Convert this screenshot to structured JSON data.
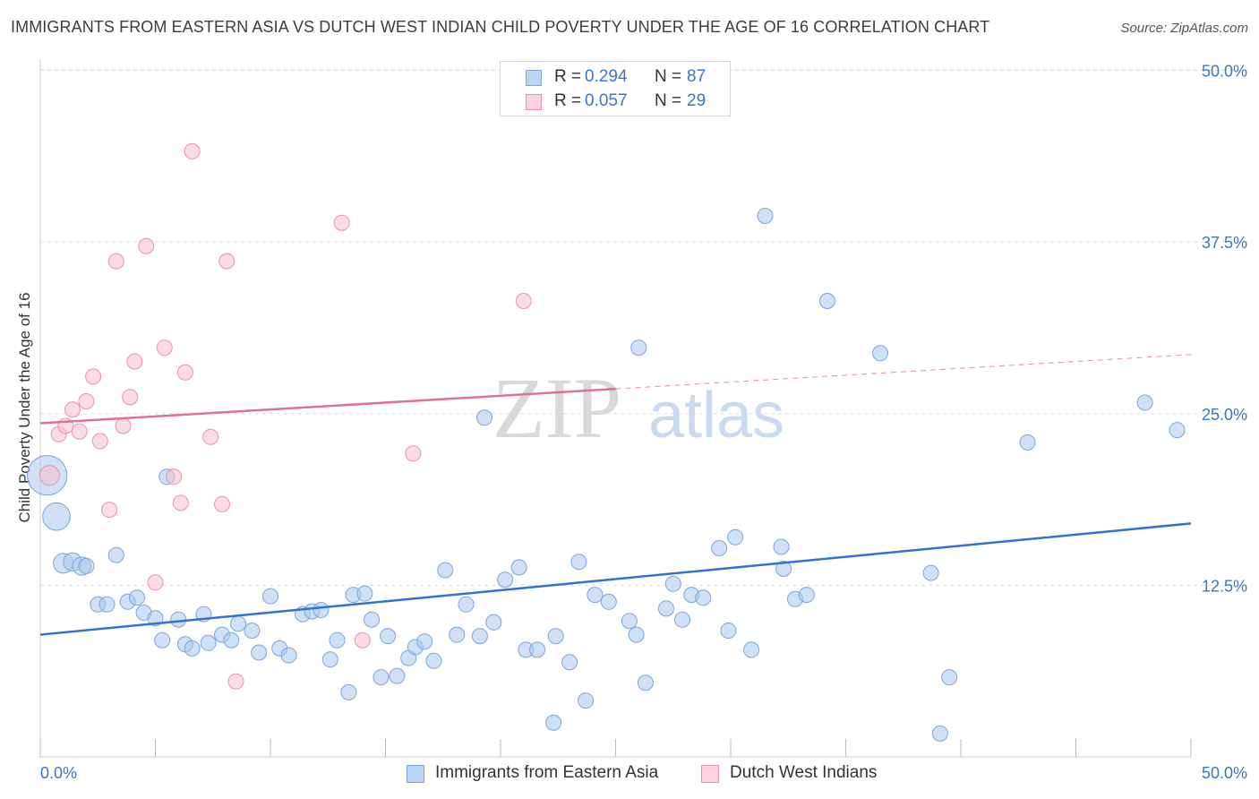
{
  "title": "IMMIGRANTS FROM EASTERN ASIA VS DUTCH WEST INDIAN CHILD POVERTY UNDER THE AGE OF 16 CORRELATION CHART",
  "source": "Source: ZipAtlas.com",
  "watermark": {
    "zip": "ZIP",
    "atlas": "atlas"
  },
  "legend": {
    "r_label": "R =",
    "n_label": "N =",
    "entries": [
      {
        "r": "0.294",
        "n": "87"
      },
      {
        "r": "0.057",
        "n": "29"
      }
    ]
  },
  "chart_data": {
    "type": "scatter",
    "title": "IMMIGRANTS FROM EASTERN ASIA VS DUTCH WEST INDIAN CHILD POVERTY UNDER THE AGE OF 16 CORRELATION CHART",
    "xlabel": "",
    "ylabel": "Child Poverty Under the Age of 16",
    "xlim": [
      0,
      50
    ],
    "ylim": [
      0,
      50
    ],
    "x_tick_labels": [
      "0.0%",
      "50.0%"
    ],
    "y_tick_labels": [
      "50.0%",
      "37.5%",
      "25.0%",
      "12.5%"
    ],
    "y_ticks": [
      50,
      37.5,
      25,
      12.5
    ],
    "grid": true,
    "legend_position": "top-center",
    "series": [
      {
        "name": "Immigrants from Eastern Asia",
        "color": "#a9c8ef",
        "stroke": "#7aa6dc",
        "line_color": "#2f73d0",
        "trend": {
          "x": [
            0,
            50
          ],
          "y": [
            8.9,
            17.0
          ],
          "dashed_from": null
        },
        "points": [
          [
            0.3,
            20.5,
            2.6
          ],
          [
            0.7,
            17.5,
            1.8
          ],
          [
            1.0,
            14.1,
            1.3
          ],
          [
            1.4,
            14.2,
            1.2
          ],
          [
            1.8,
            13.9,
            1.2
          ],
          [
            2.0,
            13.9,
            1.0
          ],
          [
            2.5,
            11.1,
            1.0
          ],
          [
            2.9,
            11.1,
            1.0
          ],
          [
            3.3,
            14.7,
            1.0
          ],
          [
            3.8,
            11.3,
            1.0
          ],
          [
            4.2,
            11.6,
            1.0
          ],
          [
            4.5,
            10.5,
            1.0
          ],
          [
            5.0,
            10.1,
            1.0
          ],
          [
            5.3,
            8.5,
            1.0
          ],
          [
            5.5,
            20.4,
            1.0
          ],
          [
            6.0,
            10.0,
            1.0
          ],
          [
            6.3,
            8.2,
            1.0
          ],
          [
            6.6,
            7.9,
            1.0
          ],
          [
            7.1,
            10.4,
            1.0
          ],
          [
            7.3,
            8.3,
            1.0
          ],
          [
            7.9,
            8.9,
            1.0
          ],
          [
            8.3,
            8.5,
            1.0
          ],
          [
            8.6,
            9.7,
            1.0
          ],
          [
            9.2,
            9.2,
            1.0
          ],
          [
            9.5,
            7.6,
            1.0
          ],
          [
            10.0,
            11.7,
            1.0
          ],
          [
            10.4,
            7.9,
            1.0
          ],
          [
            10.8,
            7.4,
            1.0
          ],
          [
            11.4,
            10.4,
            1.0
          ],
          [
            11.8,
            10.6,
            1.0
          ],
          [
            12.2,
            10.7,
            1.0
          ],
          [
            12.6,
            7.1,
            1.0
          ],
          [
            12.9,
            8.5,
            1.0
          ],
          [
            13.4,
            4.7,
            1.0
          ],
          [
            13.6,
            11.8,
            1.0
          ],
          [
            14.1,
            11.9,
            1.0
          ],
          [
            14.4,
            10.0,
            1.0
          ],
          [
            14.8,
            5.8,
            1.0
          ],
          [
            15.1,
            8.8,
            1.0
          ],
          [
            15.5,
            5.9,
            1.0
          ],
          [
            16.0,
            7.2,
            1.0
          ],
          [
            16.3,
            8.0,
            1.0
          ],
          [
            16.7,
            8.4,
            1.0
          ],
          [
            17.1,
            7.0,
            1.0
          ],
          [
            17.6,
            13.6,
            1.0
          ],
          [
            18.1,
            8.9,
            1.0
          ],
          [
            18.5,
            11.1,
            1.0
          ],
          [
            19.1,
            8.8,
            1.0
          ],
          [
            19.3,
            24.7,
            1.0
          ],
          [
            19.7,
            9.8,
            1.0
          ],
          [
            20.2,
            12.9,
            1.0
          ],
          [
            20.8,
            13.8,
            1.0
          ],
          [
            21.1,
            7.8,
            1.0
          ],
          [
            21.6,
            7.8,
            1.0
          ],
          [
            22.3,
            2.5,
            1.0
          ],
          [
            22.4,
            8.8,
            1.0
          ],
          [
            23.0,
            6.9,
            1.0
          ],
          [
            23.4,
            14.2,
            1.0
          ],
          [
            23.7,
            4.1,
            1.0
          ],
          [
            24.1,
            11.8,
            1.0
          ],
          [
            24.7,
            11.3,
            1.0
          ],
          [
            25.6,
            9.9,
            1.0
          ],
          [
            25.9,
            8.9,
            1.0
          ],
          [
            26.0,
            29.8,
            1.0
          ],
          [
            26.3,
            5.4,
            1.0
          ],
          [
            27.2,
            10.8,
            1.0
          ],
          [
            27.5,
            12.6,
            1.0
          ],
          [
            27.9,
            10.0,
            1.0
          ],
          [
            28.3,
            11.8,
            1.0
          ],
          [
            28.8,
            11.6,
            1.0
          ],
          [
            29.5,
            15.2,
            1.0
          ],
          [
            29.9,
            9.2,
            1.0
          ],
          [
            30.2,
            16.0,
            1.0
          ],
          [
            30.9,
            7.8,
            1.0
          ],
          [
            31.5,
            39.4,
            1.0
          ],
          [
            32.2,
            15.3,
            1.0
          ],
          [
            32.3,
            13.7,
            1.0
          ],
          [
            32.8,
            11.5,
            1.0
          ],
          [
            33.3,
            11.8,
            1.0
          ],
          [
            34.2,
            33.2,
            1.0
          ],
          [
            36.5,
            29.4,
            1.0
          ],
          [
            38.7,
            13.4,
            1.0
          ],
          [
            39.1,
            1.7,
            1.0
          ],
          [
            39.5,
            5.8,
            1.0
          ],
          [
            42.9,
            22.9,
            1.0
          ],
          [
            48.0,
            25.8,
            1.0
          ],
          [
            49.4,
            23.8,
            1.0
          ]
        ]
      },
      {
        "name": "Dutch West Indians",
        "color": "#f7c0d0",
        "stroke": "#e892ad",
        "line_color": "#e0709a",
        "trend": {
          "x": [
            0,
            50
          ],
          "y": [
            24.3,
            29.3
          ],
          "dashed_from": 25
        },
        "points": [
          [
            0.4,
            20.5,
            1.3
          ],
          [
            0.8,
            23.5,
            1.0
          ],
          [
            1.1,
            24.1,
            1.0
          ],
          [
            1.4,
            25.3,
            1.0
          ],
          [
            1.7,
            23.7,
            1.0
          ],
          [
            2.0,
            25.9,
            1.0
          ],
          [
            2.3,
            27.7,
            1.0
          ],
          [
            2.6,
            23.0,
            1.0
          ],
          [
            3.0,
            18.0,
            1.0
          ],
          [
            3.3,
            36.1,
            1.0
          ],
          [
            3.6,
            24.1,
            1.0
          ],
          [
            3.9,
            26.2,
            1.0
          ],
          [
            4.1,
            28.8,
            1.0
          ],
          [
            4.6,
            37.2,
            1.0
          ],
          [
            5.0,
            12.7,
            1.0
          ],
          [
            5.4,
            29.8,
            1.0
          ],
          [
            5.8,
            20.4,
            1.0
          ],
          [
            6.1,
            18.5,
            1.0
          ],
          [
            6.3,
            28.0,
            1.0
          ],
          [
            6.6,
            44.1,
            1.0
          ],
          [
            7.4,
            23.3,
            1.0
          ],
          [
            7.9,
            18.4,
            1.0
          ],
          [
            8.1,
            36.1,
            1.0
          ],
          [
            8.5,
            5.5,
            1.0
          ],
          [
            13.1,
            38.9,
            1.0
          ],
          [
            14.0,
            8.5,
            1.0
          ],
          [
            16.2,
            22.1,
            1.0
          ],
          [
            21.0,
            33.2,
            1.0
          ],
          [
            10.0,
            31.0,
            0
          ]
        ]
      }
    ]
  }
}
